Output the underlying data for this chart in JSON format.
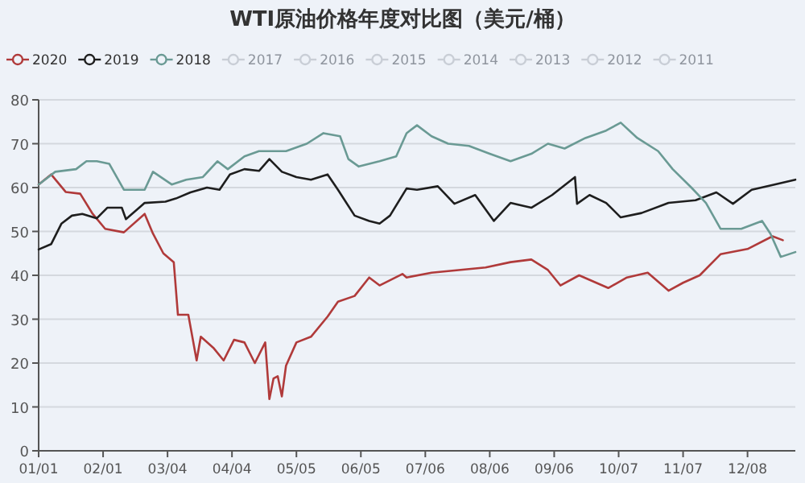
{
  "chart_data": {
    "type": "line",
    "title": "WTI原油价格年度对比图（美元/桶）",
    "xlim": [
      "--01-01",
      "--12-31"
    ],
    "xticks": [
      {
        "value": "--01-01",
        "label": "01/01"
      },
      {
        "value": "--02-01",
        "label": "02/01"
      },
      {
        "value": "--03-04",
        "label": "03/04"
      },
      {
        "value": "--04-04",
        "label": "04/04"
      },
      {
        "value": "--05-05",
        "label": "05/05"
      },
      {
        "value": "--06-05",
        "label": "06/05"
      },
      {
        "value": "--07-06",
        "label": "07/06"
      },
      {
        "value": "--08-06",
        "label": "08/06"
      },
      {
        "value": "--09-06",
        "label": "09/06"
      },
      {
        "value": "--10-07",
        "label": "10/07"
      },
      {
        "value": "--11-07",
        "label": "11/07"
      },
      {
        "value": "--12-08",
        "label": "12/08"
      }
    ],
    "ylim": [
      0,
      80
    ],
    "yticks": [
      0,
      10,
      20,
      30,
      40,
      50,
      60,
      70,
      80
    ],
    "grid": "y",
    "legend": "top",
    "series": [
      {
        "name": "2020",
        "color": "#b03a3a",
        "x": [
          "--01-01",
          "--01-07",
          "--01-14",
          "--01-21",
          "--01-27",
          "--02-02",
          "--02-11",
          "--02-21",
          "--02-25",
          "--03-02",
          "--03-07",
          "--03-09",
          "--03-14",
          "--03-18",
          "--03-20",
          "--03-26",
          "--03-31",
          "--04-05",
          "--04-10",
          "--04-15",
          "--04-20",
          "--04-22",
          "--04-24",
          "--04-26",
          "--04-28",
          "--04-30",
          "--05-05",
          "--05-12",
          "--05-20",
          "--05-25",
          "--06-02",
          "--06-09",
          "--06-14",
          "--06-25",
          "--06-27",
          "--07-09",
          "--07-22",
          "--08-04",
          "--08-16",
          "--08-26",
          "--09-03",
          "--09-09",
          "--09-18",
          "--10-02",
          "--10-11",
          "--10-21",
          "--10-31",
          "--11-07",
          "--11-15",
          "--11-25",
          "--12-08",
          "--12-20",
          "--12-25"
        ],
        "values": [
          60.7,
          63,
          59,
          58.6,
          54,
          50.6,
          49.8,
          54,
          49.5,
          45,
          43,
          31,
          31,
          20.6,
          26,
          23.5,
          20.6,
          25.3,
          24.7,
          20,
          24.7,
          11.8,
          16.5,
          17,
          12.4,
          19.4,
          24.7,
          26,
          30.6,
          34,
          35.3,
          39.5,
          37.7,
          40.3,
          39.5,
          40.6,
          41.2,
          41.8,
          43,
          43.6,
          41.2,
          37.7,
          40,
          37.1,
          39.5,
          40.6,
          36.5,
          38.3,
          40,
          44.8,
          46,
          48.9,
          48
        ]
      },
      {
        "name": "2019",
        "color": "#1e1e1e",
        "x": [
          "--01-01",
          "--01-07",
          "--01-12",
          "--01-17",
          "--01-22",
          "--01-29",
          "--02-03",
          "--02-10",
          "--02-12",
          "--02-21",
          "--03-03",
          "--03-08",
          "--03-15",
          "--03-23",
          "--03-29",
          "--04-03",
          "--04-10",
          "--04-17",
          "--04-22",
          "--04-28",
          "--05-05",
          "--05-12",
          "--05-20",
          "--05-25",
          "--06-02",
          "--06-09",
          "--06-14",
          "--06-19",
          "--06-27",
          "--07-02",
          "--07-12",
          "--07-20",
          "--07-30",
          "--08-08",
          "--08-16",
          "--08-26",
          "--09-05",
          "--09-16",
          "--09-17",
          "--09-23",
          "--10-01",
          "--10-08",
          "--10-18",
          "--10-31",
          "--11-13",
          "--11-23",
          "--12-01",
          "--12-10",
          "--12-21",
          "--12-31"
        ],
        "values": [
          45.9,
          47.1,
          51.8,
          53.6,
          54,
          53,
          55.4,
          55.4,
          52.8,
          56.5,
          56.8,
          57.5,
          58.9,
          60,
          59.5,
          63,
          64.2,
          63.8,
          66.5,
          63.6,
          62.4,
          61.8,
          63,
          59.5,
          53.6,
          52.4,
          51.8,
          53.6,
          59.8,
          59.5,
          60.3,
          56.3,
          58.3,
          52.4,
          56.5,
          55.4,
          58.3,
          62.4,
          56.3,
          58.3,
          56.5,
          53.2,
          54.2,
          56.5,
          57.1,
          58.9,
          56.3,
          59.5,
          60.7,
          61.8
        ]
      },
      {
        "name": "2018",
        "color": "#6a9a94",
        "x": [
          "--01-01",
          "--01-09",
          "--01-19",
          "--01-24",
          "--01-29",
          "--02-04",
          "--02-11",
          "--02-21",
          "--02-25",
          "--03-06",
          "--03-13",
          "--03-21",
          "--03-28",
          "--04-02",
          "--04-10",
          "--04-17",
          "--04-30",
          "--05-10",
          "--05-18",
          "--05-26",
          "--05-30",
          "--06-04",
          "--06-14",
          "--06-22",
          "--06-27",
          "--07-02",
          "--07-09",
          "--07-17",
          "--07-27",
          "--08-06",
          "--08-16",
          "--08-26",
          "--09-03",
          "--09-11",
          "--09-21",
          "--10-01",
          "--10-08",
          "--10-16",
          "--10-26",
          "--11-02",
          "--11-11",
          "--11-18",
          "--11-25",
          "--12-05",
          "--12-15",
          "--12-19",
          "--12-24",
          "--12-31"
        ],
        "values": [
          60.7,
          63.6,
          64.2,
          66,
          66,
          65.4,
          59.5,
          59.5,
          63.6,
          60.7,
          61.8,
          62.4,
          66,
          64.2,
          67.1,
          68.3,
          68.3,
          70,
          72.4,
          71.7,
          66.5,
          64.8,
          66,
          67.1,
          72.4,
          74.2,
          71.7,
          70,
          69.5,
          67.7,
          66,
          67.7,
          70,
          68.9,
          71.3,
          73,
          74.8,
          71.3,
          68.3,
          64.2,
          60,
          56.5,
          50.6,
          50.6,
          52.4,
          49.5,
          44.2,
          45.3
        ]
      },
      {
        "name": "2017",
        "color": "#c9ced6"
      },
      {
        "name": "2016",
        "color": "#c9ced6"
      },
      {
        "name": "2015",
        "color": "#c9ced6"
      },
      {
        "name": "2014",
        "color": "#c9ced6"
      },
      {
        "name": "2013",
        "color": "#c9ced6"
      },
      {
        "name": "2012",
        "color": "#c9ced6"
      },
      {
        "name": "2011",
        "color": "#c9ced6"
      }
    ]
  }
}
